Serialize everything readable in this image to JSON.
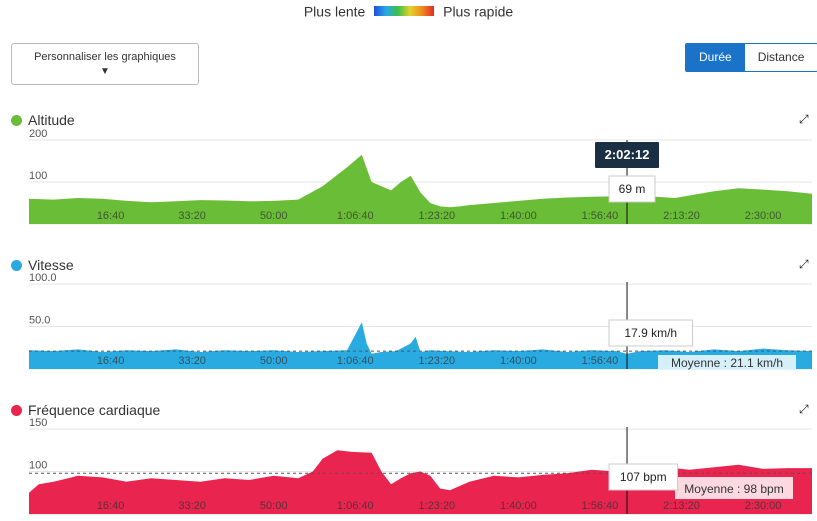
{
  "legend": {
    "slow": "Plus lente",
    "fast": "Plus rapide"
  },
  "customize": {
    "label": "Personnaliser les graphiques",
    "arrow": "▼"
  },
  "toggle": {
    "duration": "Durée",
    "distance": "Distance"
  },
  "cursor": {
    "time": "2:02:12"
  },
  "chart_data": [
    {
      "type": "area",
      "title": "Altitude",
      "color": "#6abd36",
      "ylim": [
        0,
        200
      ],
      "yticks": [
        "200",
        "100",
        "0"
      ],
      "x_ticks": [
        "16:40",
        "33:20",
        "50:00",
        "1:06:40",
        "1:23:20",
        "1:40:00",
        "1:56:40",
        "2:13:20",
        "2:30:00"
      ],
      "x": [
        0,
        5,
        10,
        15,
        20,
        25,
        30,
        35,
        40,
        45,
        50,
        55,
        60,
        65,
        68,
        70,
        72,
        74,
        76,
        78,
        80,
        82,
        84,
        86,
        88,
        90,
        95,
        100,
        105,
        110,
        115,
        120,
        121,
        122.2,
        124,
        128,
        132,
        136,
        140,
        145,
        150,
        155,
        160
      ],
      "values": [
        60,
        58,
        62,
        60,
        55,
        52,
        54,
        57,
        56,
        54,
        55,
        58,
        90,
        135,
        165,
        100,
        90,
        80,
        100,
        115,
        75,
        50,
        42,
        40,
        42,
        45,
        50,
        55,
        60,
        63,
        65,
        66,
        68,
        69,
        72,
        65,
        62,
        70,
        78,
        85,
        82,
        78,
        72
      ],
      "cursor_label": "69 m"
    },
    {
      "type": "area",
      "title": "Vitesse",
      "color": "#29abe2",
      "ylim": [
        0,
        100
      ],
      "yticks": [
        "100.0",
        "50.0",
        "0.0"
      ],
      "x_ticks": [
        "16:40",
        "33:20",
        "50:00",
        "1:06:40",
        "1:23:20",
        "1:40:00",
        "1:56:40",
        "2:13:20",
        "2:30:00"
      ],
      "x": [
        0,
        5,
        10,
        15,
        20,
        25,
        30,
        35,
        40,
        45,
        50,
        55,
        60,
        65,
        68,
        69,
        70,
        72,
        75,
        78,
        79,
        80,
        82,
        85,
        90,
        95,
        100,
        105,
        110,
        115,
        120,
        122.2,
        125,
        130,
        135,
        140,
        145,
        150,
        155,
        160
      ],
      "values": [
        22,
        21,
        23,
        20,
        22,
        21,
        23,
        20,
        22,
        21,
        22,
        20,
        21,
        22,
        55,
        30,
        18,
        20,
        21,
        30,
        38,
        20,
        22,
        21,
        20,
        22,
        21,
        23,
        20,
        22,
        21,
        18,
        21,
        22,
        20,
        23,
        21,
        24,
        22,
        21
      ],
      "average": 21.1,
      "average_label": "Moyenne : 21.1 km/h",
      "cursor_label": "17.9 km/h"
    },
    {
      "type": "area",
      "title": "Fréquence cardiaque",
      "color": "#e8244f",
      "ylim": [
        50,
        150
      ],
      "yticks": [
        "150",
        "100",
        "50"
      ],
      "x_ticks": [
        "16:40",
        "33:20",
        "50:00",
        "1:06:40",
        "1:23:20",
        "1:40:00",
        "1:56:40",
        "2:13:20",
        "2:30:00"
      ],
      "x": [
        0,
        2,
        5,
        8,
        10,
        15,
        20,
        25,
        30,
        35,
        40,
        45,
        50,
        55,
        58,
        60,
        63,
        66,
        70,
        72,
        74,
        76,
        78,
        80,
        82,
        84,
        86,
        90,
        95,
        100,
        105,
        110,
        115,
        120,
        122.2,
        125,
        130,
        135,
        140,
        145,
        150,
        155,
        160
      ],
      "values": [
        75,
        85,
        88,
        92,
        95,
        93,
        88,
        92,
        90,
        88,
        92,
        90,
        95,
        92,
        100,
        115,
        125,
        123,
        122,
        100,
        85,
        92,
        98,
        100,
        95,
        80,
        78,
        88,
        95,
        93,
        96,
        98,
        102,
        100,
        107,
        100,
        105,
        102,
        105,
        108,
        103,
        104,
        104
      ],
      "average": 98,
      "average_label": "Moyenne : 98 bpm",
      "cursor_label": "107 bpm"
    }
  ]
}
